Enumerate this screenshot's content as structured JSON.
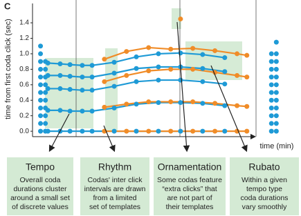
{
  "chart_data": {
    "type": "line",
    "panel_label": "C",
    "y_label": "time from first coda click (sec)",
    "x_label": "time (min)",
    "xlim": [
      0,
      100
    ],
    "ylim": [
      -0.07,
      1.65
    ],
    "yticks": [
      {
        "value": 0,
        "label": "0.0"
      },
      0.2,
      0.4,
      0.6,
      0.8,
      {
        "value": 1,
        "label": "1.0"
      },
      1.2,
      1.4
    ],
    "series": [
      {
        "color": "#1e9ad6",
        "x": [
          4,
          9,
          13,
          18,
          22,
          31,
          40,
          49,
          58,
          67,
          76
        ],
        "values": [
          0,
          0,
          0,
          0,
          0,
          0,
          0,
          0,
          0,
          0,
          0
        ]
      },
      {
        "color": "#1e9ad6",
        "x": [
          4,
          9,
          13,
          18,
          22,
          31,
          40,
          49,
          58,
          67,
          76
        ],
        "values": [
          0.27,
          0.27,
          0.26,
          0.26,
          0.26,
          0.3,
          0.35,
          0.37,
          0.37,
          0.36,
          0.33
        ]
      },
      {
        "color": "#1e9ad6",
        "x": [
          4,
          9,
          13,
          18,
          22,
          31,
          40,
          49,
          58,
          67,
          76
        ],
        "values": [
          0.55,
          0.55,
          0.54,
          0.53,
          0.53,
          0.58,
          0.64,
          0.66,
          0.66,
          0.64,
          0.61
        ]
      },
      {
        "color": "#1e9ad6",
        "x": [
          4,
          9,
          13,
          18,
          22,
          31,
          40,
          49,
          58,
          67,
          76
        ],
        "values": [
          0.72,
          0.72,
          0.71,
          0.7,
          0.7,
          0.75,
          0.81,
          0.83,
          0.83,
          0.81,
          0.77
        ]
      },
      {
        "color": "#1e9ad6",
        "x": [
          4,
          9,
          13,
          18,
          22,
          31,
          40,
          49,
          58,
          67,
          76
        ],
        "values": [
          0.88,
          0.87,
          0.86,
          0.85,
          0.85,
          0.89,
          0.96,
          1.0,
          1.01,
          0.99,
          0.95
        ]
      },
      {
        "color": "#f08c28",
        "x": [
          27,
          36,
          45,
          54,
          63,
          72,
          81,
          85
        ],
        "values": [
          0,
          0,
          0,
          0,
          0,
          0,
          0,
          0
        ]
      },
      {
        "color": "#f08c28",
        "x": [
          27,
          36,
          45,
          54,
          63,
          72,
          81,
          85
        ],
        "values": [
          0.31,
          0.35,
          0.38,
          0.38,
          0.38,
          0.36,
          0.33,
          0.32
        ]
      },
      {
        "color": "#f08c28",
        "x": [
          27,
          36,
          45,
          54,
          63,
          72,
          81,
          85
        ],
        "values": [
          0.64,
          0.72,
          0.78,
          0.8,
          0.8,
          0.76,
          0.72,
          0.7
        ]
      },
      {
        "color": "#f08c28",
        "x": [
          27,
          36,
          45,
          54,
          63,
          72,
          81,
          85
        ],
        "values": [
          0.93,
          1.03,
          1.08,
          1.06,
          1.07,
          1.04,
          1.0,
          0.98
        ]
      },
      {
        "color": "#f08c28",
        "style": "points",
        "x": [
          58
        ],
        "values": [
          1.45
        ]
      },
      {
        "color": "#1e9ad6",
        "style": "points",
        "x": [
          1,
          1,
          1,
          1,
          1,
          1,
          1,
          1,
          1,
          1,
          1,
          1
        ],
        "values": [
          0,
          0.1,
          0.2,
          0.3,
          0.4,
          0.5,
          0.6,
          0.7,
          0.8,
          0.9,
          1.0,
          1.1
        ]
      },
      {
        "color": "#1e9ad6",
        "style": "points",
        "x": [
          3,
          3,
          3,
          3,
          3,
          3,
          3,
          3,
          3,
          3
        ],
        "values": [
          0,
          0.1,
          0.2,
          0.3,
          0.4,
          0.5,
          0.6,
          0.7,
          0.8,
          0.9
        ]
      },
      {
        "color": "#1e9ad6",
        "style": "points",
        "x": [
          95,
          95,
          95,
          95,
          95,
          95,
          95,
          95,
          95,
          95,
          95
        ],
        "values": [
          0,
          0.1,
          0.2,
          0.3,
          0.4,
          0.5,
          0.6,
          0.7,
          0.8,
          0.9,
          1.0
        ]
      },
      {
        "color": "#1e9ad6",
        "style": "points",
        "x": [
          97,
          97,
          97,
          97,
          97,
          97,
          97,
          97,
          97,
          97,
          97,
          97
        ],
        "values": [
          0,
          0.1,
          0.2,
          0.3,
          0.4,
          0.5,
          0.6,
          0.7,
          0.8,
          0.9,
          1.0,
          1.15
        ]
      }
    ],
    "annotations": [
      {
        "title": "Tempo",
        "lines": [
          "Overall coda",
          "durations cluster",
          "around a small set",
          "of discrete values"
        ]
      },
      {
        "title": "Rhythm",
        "lines": [
          "Codas' inter click",
          "intervals are drawn",
          "from a limited",
          "set of templates"
        ]
      },
      {
        "title": "Ornamentation",
        "lines": [
          "Some codas feature",
          "“extra clicks” that",
          "are not part of",
          "their templates"
        ]
      },
      {
        "title": "Rubato",
        "lines": [
          "Within a given",
          "tempo type",
          "coda durations",
          "vary smoothly"
        ]
      }
    ]
  }
}
